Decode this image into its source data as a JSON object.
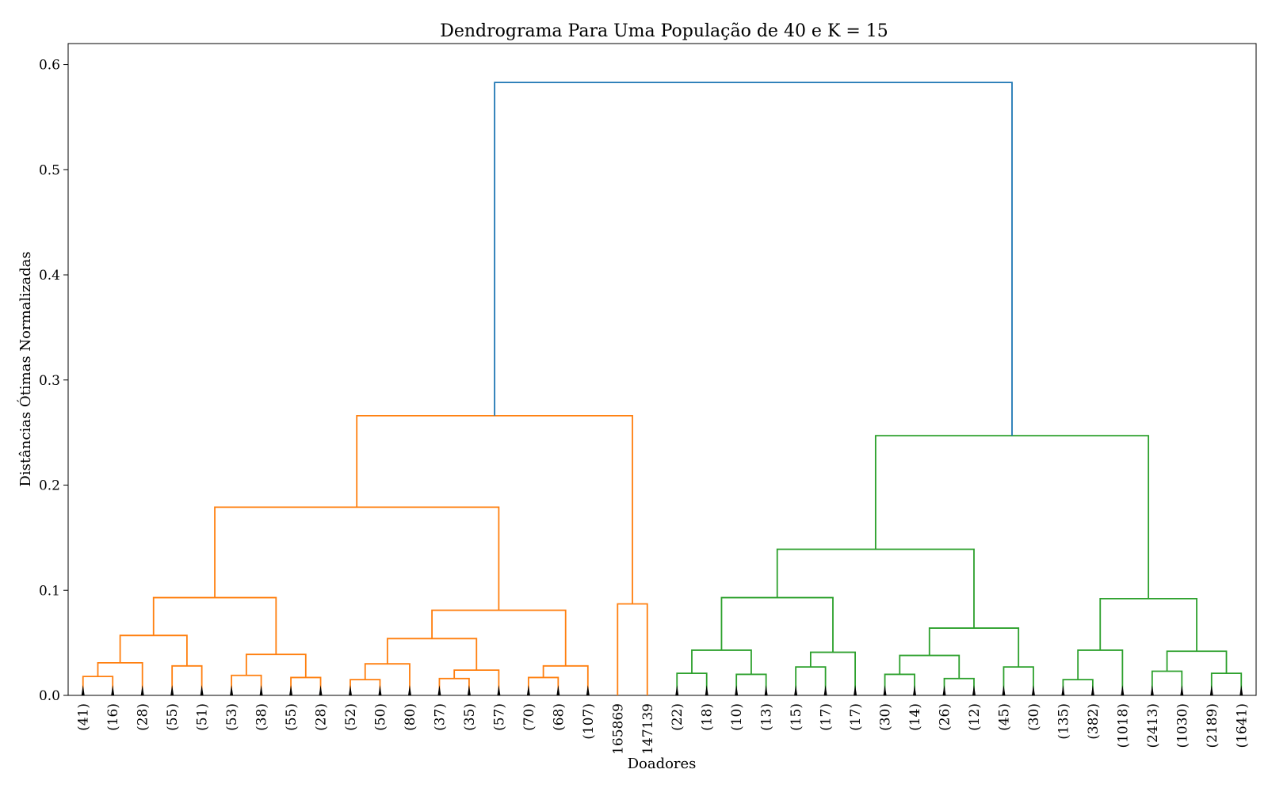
{
  "chart_data": {
    "type": "dendrogram",
    "title": "Dendrograma Para Uma População de 40 e K = 15",
    "xlabel": "Doadores",
    "ylabel": "Distâncias Ótimas Normalizadas",
    "ylim": [
      0,
      0.62
    ],
    "yticks": [
      "0.0",
      "0.1",
      "0.2",
      "0.3",
      "0.4",
      "0.5",
      "0.6"
    ],
    "colors": {
      "root": "#1f77b4",
      "cluster_1": "#ff7f0e",
      "cluster_2": "#2ca02c"
    },
    "leaves": [
      "(41)",
      "(16)",
      "(28)",
      "(55)",
      "(51)",
      "(53)",
      "(38)",
      "(55)",
      "(28)",
      "(52)",
      "(50)",
      "(80)",
      "(37)",
      "(35)",
      "(57)",
      "(70)",
      "(68)",
      "(107)",
      "165869",
      "147139",
      "(22)",
      "(18)",
      "(10)",
      "(13)",
      "(15)",
      "(17)",
      "(17)",
      "(30)",
      "(14)",
      "(26)",
      "(12)",
      "(45)",
      "(30)",
      "(135)",
      "(382)",
      "(1018)",
      "(2413)",
      "(1030)",
      "(2189)",
      "(1641)"
    ],
    "merges": [
      {
        "left": 0,
        "right": 1,
        "height": 0.018,
        "color": "cluster_1"
      },
      {
        "left": 40,
        "right": 2,
        "height": 0.031,
        "color": "cluster_1"
      },
      {
        "left": 3,
        "right": 4,
        "height": 0.028,
        "color": "cluster_1"
      },
      {
        "left": 41,
        "right": 42,
        "height": 0.057,
        "color": "cluster_1"
      },
      {
        "left": 5,
        "right": 6,
        "height": 0.019,
        "color": "cluster_1"
      },
      {
        "left": 7,
        "right": 8,
        "height": 0.017,
        "color": "cluster_1"
      },
      {
        "left": 44,
        "right": 45,
        "height": 0.039,
        "color": "cluster_1"
      },
      {
        "left": 43,
        "right": 46,
        "height": 0.093,
        "color": "cluster_1"
      },
      {
        "left": 9,
        "right": 10,
        "height": 0.015,
        "color": "cluster_1"
      },
      {
        "left": 48,
        "right": 11,
        "height": 0.03,
        "color": "cluster_1"
      },
      {
        "left": 12,
        "right": 13,
        "height": 0.016,
        "color": "cluster_1"
      },
      {
        "left": 50,
        "right": 14,
        "height": 0.024,
        "color": "cluster_1"
      },
      {
        "left": 49,
        "right": 51,
        "height": 0.054,
        "color": "cluster_1"
      },
      {
        "left": 15,
        "right": 16,
        "height": 0.017,
        "color": "cluster_1"
      },
      {
        "left": 53,
        "right": 17,
        "height": 0.028,
        "color": "cluster_1"
      },
      {
        "left": 52,
        "right": 54,
        "height": 0.081,
        "color": "cluster_1"
      },
      {
        "left": 47,
        "right": 55,
        "height": 0.179,
        "color": "cluster_1"
      },
      {
        "left": 18,
        "right": 19,
        "height": 0.087,
        "color": "cluster_1"
      },
      {
        "left": 56,
        "right": 57,
        "height": 0.266,
        "color": "cluster_1"
      },
      {
        "left": 20,
        "right": 21,
        "height": 0.021,
        "color": "cluster_2"
      },
      {
        "left": 22,
        "right": 23,
        "height": 0.02,
        "color": "cluster_2"
      },
      {
        "left": 59,
        "right": 60,
        "height": 0.043,
        "color": "cluster_2"
      },
      {
        "left": 24,
        "right": 25,
        "height": 0.027,
        "color": "cluster_2"
      },
      {
        "left": 62,
        "right": 26,
        "height": 0.041,
        "color": "cluster_2"
      },
      {
        "left": 61,
        "right": 63,
        "height": 0.093,
        "color": "cluster_2"
      },
      {
        "left": 27,
        "right": 28,
        "height": 0.02,
        "color": "cluster_2"
      },
      {
        "left": 29,
        "right": 30,
        "height": 0.016,
        "color": "cluster_2"
      },
      {
        "left": 65,
        "right": 66,
        "height": 0.038,
        "color": "cluster_2"
      },
      {
        "left": 31,
        "right": 32,
        "height": 0.027,
        "color": "cluster_2"
      },
      {
        "left": 67,
        "right": 68,
        "height": 0.064,
        "color": "cluster_2"
      },
      {
        "left": 64,
        "right": 69,
        "height": 0.139,
        "color": "cluster_2"
      },
      {
        "left": 33,
        "right": 34,
        "height": 0.015,
        "color": "cluster_2"
      },
      {
        "left": 71,
        "right": 35,
        "height": 0.043,
        "color": "cluster_2"
      },
      {
        "left": 36,
        "right": 37,
        "height": 0.023,
        "color": "cluster_2"
      },
      {
        "left": 38,
        "right": 39,
        "height": 0.021,
        "color": "cluster_2"
      },
      {
        "left": 73,
        "right": 74,
        "height": 0.042,
        "color": "cluster_2"
      },
      {
        "left": 72,
        "right": 75,
        "height": 0.092,
        "color": "cluster_2"
      },
      {
        "left": 70,
        "right": 76,
        "height": 0.247,
        "color": "cluster_2"
      },
      {
        "left": 58,
        "right": 77,
        "height": 0.583,
        "color": "root"
      }
    ]
  }
}
